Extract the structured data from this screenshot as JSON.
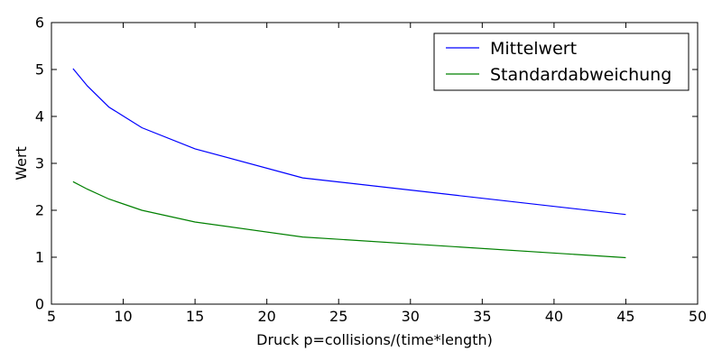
{
  "chart_data": {
    "type": "line",
    "xlabel": "Druck p=collisions/(time*length)",
    "ylabel": "Wert",
    "xlim": [
      5,
      50
    ],
    "ylim": [
      0,
      6
    ],
    "xticks": [
      5,
      10,
      15,
      20,
      25,
      30,
      35,
      40,
      45,
      50
    ],
    "yticks": [
      0,
      1,
      2,
      3,
      4,
      5,
      6
    ],
    "grid": false,
    "legend_position": "top-right",
    "series": [
      {
        "name": "Mittelwert",
        "color": "#0000ff",
        "x": [
          6.5,
          7.5,
          9.0,
          11.3,
          15.0,
          22.5,
          45.0
        ],
        "y": [
          5.02,
          4.65,
          4.2,
          3.76,
          3.31,
          2.69,
          1.91
        ]
      },
      {
        "name": "Standardabweichung",
        "color": "#008000",
        "x": [
          6.5,
          7.5,
          9.0,
          11.3,
          15.0,
          22.5,
          45.0
        ],
        "y": [
          2.61,
          2.45,
          2.24,
          2.0,
          1.75,
          1.43,
          0.99
        ]
      }
    ]
  }
}
